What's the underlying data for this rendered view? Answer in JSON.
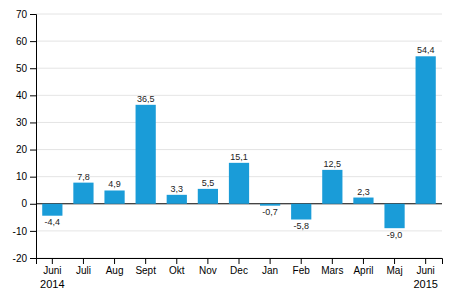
{
  "chart_data": {
    "type": "bar",
    "categories": [
      "Juni",
      "Juli",
      "Aug",
      "Sept",
      "Okt",
      "Nov",
      "Dec",
      "Jan",
      "Feb",
      "Mars",
      "April",
      "Maj",
      "Juni"
    ],
    "values": [
      -4.4,
      7.8,
      4.9,
      36.5,
      3.3,
      5.5,
      15.1,
      -0.7,
      -5.8,
      12.5,
      2.3,
      -9.0,
      54.4
    ],
    "value_labels": [
      "-4,4",
      "7,8",
      "4,9",
      "36,5",
      "3,3",
      "5,5",
      "15,1",
      "-0,7",
      "-5,8",
      "12,5",
      "2,3",
      "-9,0",
      "54,4"
    ],
    "data_labels": true,
    "color": "#1a9cd8",
    "ylim": [
      -20,
      70
    ],
    "yticks": [
      -20,
      -10,
      0,
      10,
      20,
      30,
      40,
      50,
      60,
      70
    ],
    "grid": true,
    "annotations": [
      {
        "text": "2014",
        "category_index": 0
      },
      {
        "text": "2015",
        "category_index": 12
      }
    ]
  }
}
